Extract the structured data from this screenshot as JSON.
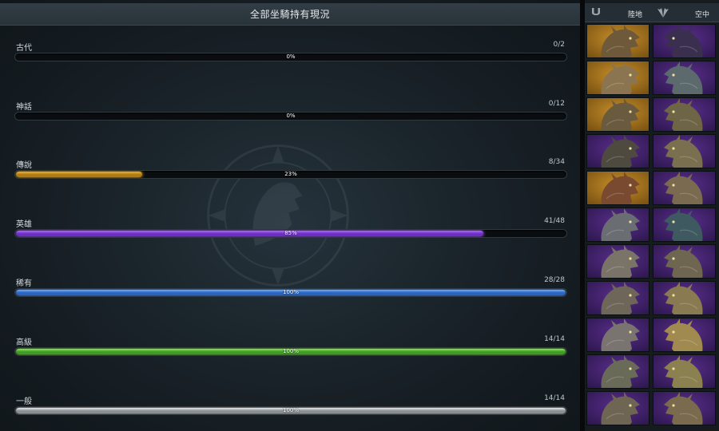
{
  "header": {
    "title": "全部坐騎持有現況"
  },
  "grades": [
    {
      "name": "古代",
      "count": "0/2",
      "percent_label": "0%",
      "fill_percent": 0,
      "color_a": "#444444",
      "color_b": "#666666"
    },
    {
      "name": "神話",
      "count": "0/12",
      "percent_label": "0%",
      "fill_percent": 0,
      "color_a": "#444444",
      "color_b": "#666666"
    },
    {
      "name": "傳說",
      "count": "8/34",
      "percent_label": "23%",
      "fill_percent": 23,
      "color_a": "#b07b12",
      "color_b": "#e8b33a"
    },
    {
      "name": "英雄",
      "count": "41/48",
      "percent_label": "85%",
      "fill_percent": 85,
      "color_a": "#6b2fc4",
      "color_b": "#b06aff"
    },
    {
      "name": "稀有",
      "count": "28/28",
      "percent_label": "100%",
      "fill_percent": 100,
      "color_a": "#2c63c0",
      "color_b": "#6fb0ff"
    },
    {
      "name": "高級",
      "count": "14/14",
      "percent_label": "100%",
      "fill_percent": 100,
      "color_a": "#3f9a26",
      "color_b": "#8ae858"
    },
    {
      "name": "一般",
      "count": "14/14",
      "percent_label": "100%",
      "fill_percent": 100,
      "color_a": "#8a8f93",
      "color_b": "#e6eaec"
    }
  ],
  "filters": {
    "land": {
      "label": "陸地",
      "icon": "horseshoe-icon"
    },
    "air": {
      "label": "空中",
      "icon": "wings-icon"
    }
  },
  "mount_grid": {
    "cells": [
      {
        "bg": "gold",
        "tone": "#6e5a3a"
      },
      {
        "bg": "purple",
        "tone": "#3a2f4e"
      },
      {
        "bg": "gold",
        "tone": "#8a7550"
      },
      {
        "bg": "purple",
        "tone": "#5c6a6e"
      },
      {
        "bg": "gold",
        "tone": "#6a5a3e"
      },
      {
        "bg": "purple",
        "tone": "#6e6446"
      },
      {
        "bg": "purple",
        "tone": "#4e4a40"
      },
      {
        "bg": "purple",
        "tone": "#7a7050"
      },
      {
        "bg": "gold",
        "tone": "#7a4a30"
      },
      {
        "bg": "purple",
        "tone": "#7a6a50"
      },
      {
        "bg": "purple",
        "tone": "#6a6e72"
      },
      {
        "bg": "purple",
        "tone": "#3e5a60"
      },
      {
        "bg": "purple",
        "tone": "#7a7468"
      },
      {
        "bg": "purple",
        "tone": "#6e6650"
      },
      {
        "bg": "purple",
        "tone": "#6e6658"
      },
      {
        "bg": "purple",
        "tone": "#8a7a52"
      },
      {
        "bg": "purple",
        "tone": "#7a7470"
      },
      {
        "bg": "purple",
        "tone": "#a08a50"
      },
      {
        "bg": "purple",
        "tone": "#6a6a58"
      },
      {
        "bg": "purple",
        "tone": "#8a8050"
      },
      {
        "bg": "purple",
        "tone": "#6e6652"
      },
      {
        "bg": "purple",
        "tone": "#7a6a4e"
      }
    ]
  }
}
